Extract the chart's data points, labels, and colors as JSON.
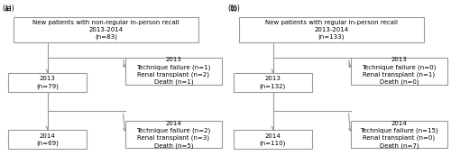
{
  "panel_a": {
    "label": "(a)",
    "top_box": {
      "text": "New patients with non-regular in-person recall\n2013-2014\n(n=83)"
    },
    "mid_box": {
      "text": "2013\n(n=79)"
    },
    "bot_box": {
      "text": "2014\n(n=69)"
    },
    "right_box_1": {
      "text": "2013\nTechnique failure (n=1)\nRenal transplant (n=2)\nDeath (n=1)"
    },
    "right_box_2": {
      "text": "2014\nTechnique failure (n=2)\nRenal transplant (n=3)\nDeath (n=5)"
    }
  },
  "panel_b": {
    "label": "(b)",
    "top_box": {
      "text": "New patients with regular in-person recall\n2013-2014\n(n=133)"
    },
    "mid_box": {
      "text": "2013\n(n=132)"
    },
    "bot_box": {
      "text": "2014\n(n=110)"
    },
    "right_box_1": {
      "text": "2013\nTechnique failure (n=0)\nRenal transplant (n=1)\nDeath (n=0)"
    },
    "right_box_2": {
      "text": "2014\nTechnique failure (n=15)\nRenal transplant (n=0)\nDeath (n=7)"
    }
  },
  "box_edge_color": "#999999",
  "arrow_color": "#999999",
  "text_color": "#000000",
  "font_size": 5.0,
  "bg_color": "#ffffff"
}
